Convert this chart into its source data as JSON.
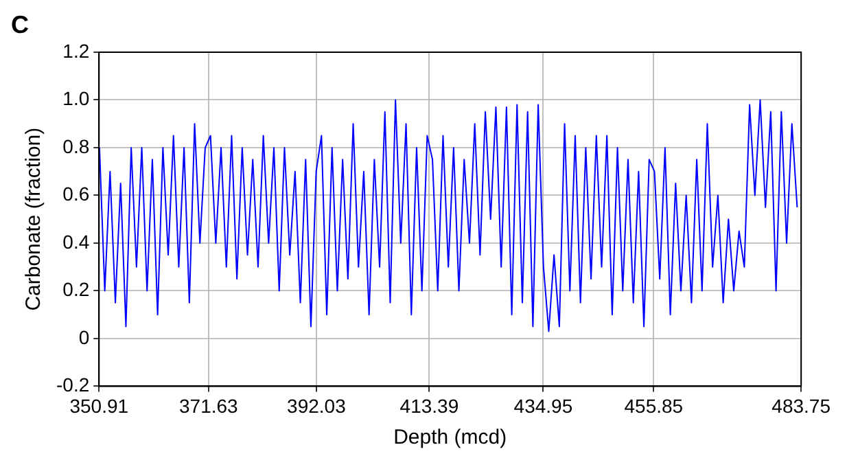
{
  "chart_data": {
    "type": "line",
    "xlabel": "Depth (mcd)",
    "ylabel": "Carbonate (fraction)",
    "annotations": [
      "C"
    ],
    "xlim": [
      350.91,
      483.75
    ],
    "xticks": [
      350.91,
      371.63,
      392.03,
      413.39,
      434.95,
      455.85,
      483.75
    ],
    "ylim": [
      -0.2,
      1.2
    ],
    "yticks": [
      {
        "value": -0.2,
        "label": "-0.2"
      },
      {
        "value": 0,
        "label": "0"
      },
      {
        "value": 0.2,
        "label": "0.2"
      },
      {
        "value": 0.4,
        "label": "0.4"
      },
      {
        "value": 0.6,
        "label": "0.6"
      },
      {
        "value": 0.8,
        "label": "0.8"
      },
      {
        "value": 1,
        "label": "1.0"
      },
      {
        "value": 1.2,
        "label": "1.2"
      }
    ],
    "grid": true,
    "legend": false,
    "marker": "none",
    "line_style": "solid",
    "series": [
      {
        "color": "#0000ff",
        "x": [
          351,
          352,
          353,
          354,
          355,
          356,
          357,
          358,
          359,
          360,
          361,
          362,
          363,
          364,
          365,
          366,
          367,
          368,
          369,
          370,
          371,
          372,
          373,
          374,
          375,
          376,
          377,
          378,
          379,
          380,
          381,
          382,
          383,
          384,
          385,
          386,
          387,
          388,
          389,
          390,
          391,
          392,
          393,
          394,
          395,
          396,
          397,
          398,
          399,
          400,
          401,
          402,
          403,
          404,
          405,
          406,
          407,
          408,
          409,
          410,
          411,
          412,
          413,
          414,
          415,
          416,
          417,
          418,
          419,
          420,
          421,
          422,
          423,
          424,
          425,
          426,
          427,
          428,
          429,
          430,
          431,
          432,
          433,
          434,
          435,
          436,
          437,
          438,
          439,
          440,
          441,
          442,
          443,
          444,
          445,
          446,
          447,
          448,
          449,
          450,
          451,
          452,
          453,
          454,
          455,
          456,
          457,
          458,
          459,
          460,
          461,
          462,
          463,
          464,
          465,
          466,
          467,
          468,
          469,
          470,
          471,
          472,
          473,
          474,
          475,
          476,
          477,
          478,
          479,
          480,
          481,
          482,
          483
        ],
        "values": [
          0.8,
          0.2,
          0.7,
          0.15,
          0.65,
          0.05,
          0.8,
          0.3,
          0.8,
          0.2,
          0.75,
          0.1,
          0.8,
          0.35,
          0.85,
          0.3,
          0.8,
          0.15,
          0.9,
          0.4,
          0.8,
          0.85,
          0.4,
          0.8,
          0.3,
          0.85,
          0.25,
          0.8,
          0.35,
          0.75,
          0.3,
          0.85,
          0.4,
          0.8,
          0.2,
          0.8,
          0.35,
          0.7,
          0.15,
          0.75,
          0.05,
          0.7,
          0.85,
          0.1,
          0.8,
          0.2,
          0.75,
          0.25,
          0.9,
          0.3,
          0.7,
          0.1,
          0.75,
          0.3,
          0.95,
          0.15,
          1.0,
          0.4,
          0.9,
          0.1,
          0.8,
          0.2,
          0.85,
          0.75,
          0.2,
          0.85,
          0.3,
          0.8,
          0.2,
          0.75,
          0.4,
          0.9,
          0.35,
          0.95,
          0.5,
          0.97,
          0.3,
          0.97,
          0.1,
          0.98,
          0.15,
          0.95,
          0.05,
          0.98,
          0.3,
          0.03,
          0.35,
          0.05,
          0.9,
          0.2,
          0.85,
          0.15,
          0.8,
          0.25,
          0.85,
          0.3,
          0.85,
          0.1,
          0.8,
          0.2,
          0.75,
          0.15,
          0.7,
          0.05,
          0.75,
          0.7,
          0.25,
          0.8,
          0.1,
          0.65,
          0.2,
          0.6,
          0.15,
          0.75,
          0.2,
          0.9,
          0.3,
          0.6,
          0.15,
          0.5,
          0.2,
          0.45,
          0.3,
          0.98,
          0.6,
          1.0,
          0.55,
          0.95,
          0.2,
          0.95,
          0.4,
          0.9,
          0.55
        ]
      }
    ]
  }
}
